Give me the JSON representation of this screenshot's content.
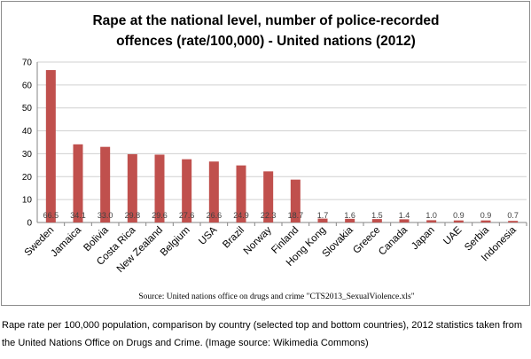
{
  "chart_data": {
    "type": "bar",
    "title_lines": [
      "Rape at the national level, number of police-recorded",
      "offences (rate/100,000) - United nations (2012)"
    ],
    "categories": [
      "Sweden",
      "Jamaica",
      "Bolivia",
      "Costa Rica",
      "New Zealand",
      "Belgium",
      "USA",
      "Brazil",
      "Norway",
      "Finland",
      "Hong Kong",
      "Slovakia",
      "Greece",
      "Canada",
      "Japan",
      "UAE",
      "Serbia",
      "Indonesia"
    ],
    "values": [
      66.5,
      34.1,
      33.0,
      29.8,
      29.6,
      27.6,
      26.6,
      24.9,
      22.3,
      18.7,
      1.7,
      1.6,
      1.5,
      1.4,
      1.0,
      0.9,
      0.9,
      0.7
    ],
    "data_labels": [
      "66.5",
      "34.1",
      "33.0",
      "29.8",
      "29.6",
      "27.6",
      "26.6",
      "24.9",
      "22.3",
      "18.7",
      "1.7",
      "1.6",
      "1.5",
      "1.4",
      "1.0",
      "0.9",
      "0.9",
      "0.7"
    ],
    "ylim": [
      0,
      70
    ],
    "yticks": [
      0,
      10,
      20,
      30,
      40,
      50,
      60,
      70
    ],
    "grid": true,
    "legend": "none",
    "bar_color": "#c0504d",
    "source": "Source: United nations office on drugs and crime \"CTS2013_SexualViolence.xls\""
  },
  "caption": "Rape rate per 100,000 population, comparison by country (selected top and bottom countries), 2012 statistics taken from the United Nations Office on Drugs and Crime. (Image source: Wikimedia Commons)"
}
